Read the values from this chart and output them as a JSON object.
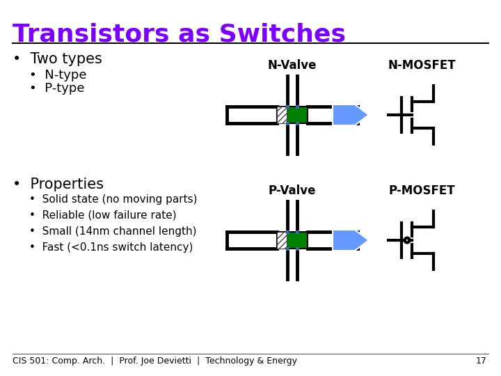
{
  "title": "Transistors as Switches",
  "title_color": "#7B00FF",
  "bg_color": "#FFFFFF",
  "bullet_points_props": [
    "Solid state (no moving parts)",
    "Reliable (low failure rate)",
    "Small (14nm channel length)",
    "Fast (<0.1ns switch latency)"
  ],
  "label_n_valve": "N-Valve",
  "label_n_mosfet": "N-MOSFET",
  "label_p_valve": "P-Valve",
  "label_p_mosfet": "P-MOSFET",
  "footer": "CIS 501: Comp. Arch.  |  Prof. Joe Devietti  |  Technology & Energy",
  "page_num": "17",
  "green_fill": "#008000",
  "arrow_color": "#6699FF",
  "line_color": "#000000"
}
